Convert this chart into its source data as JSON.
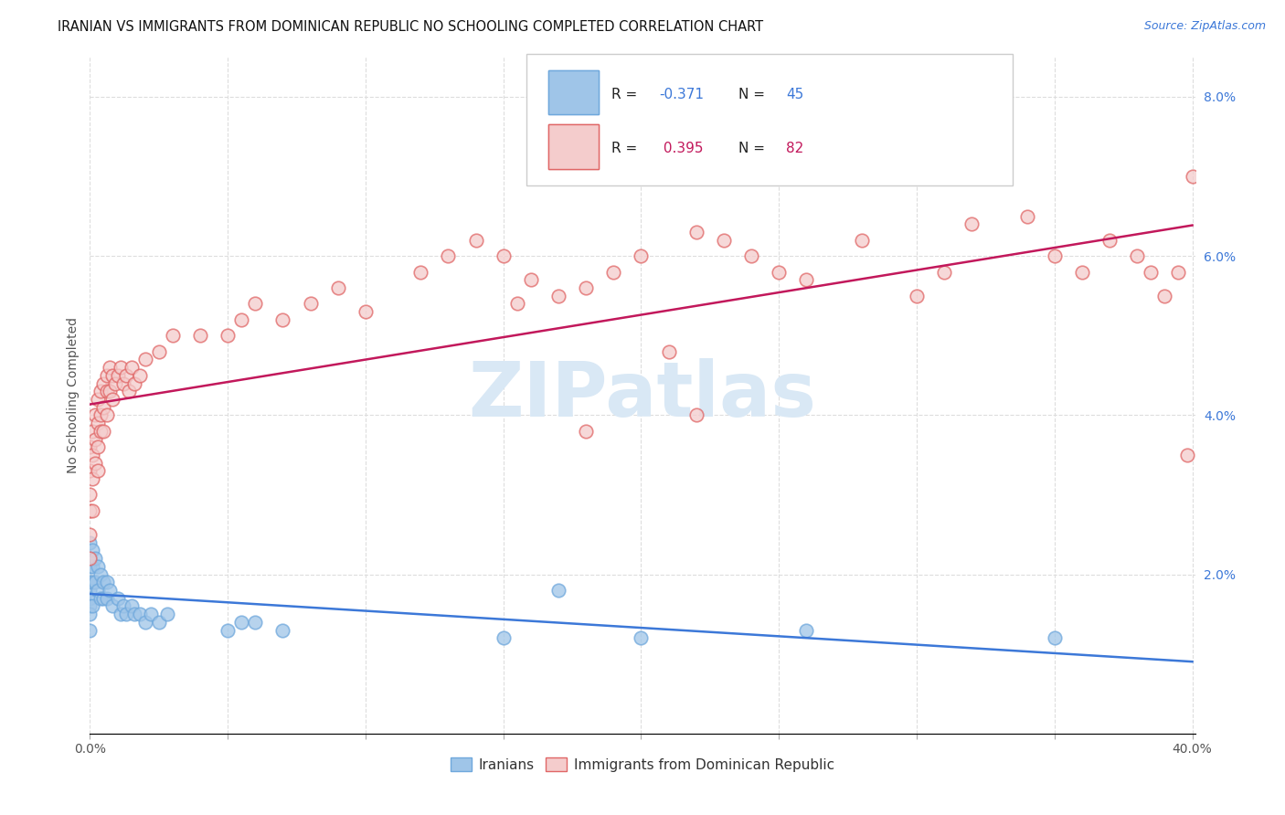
{
  "title": "IRANIAN VS IMMIGRANTS FROM DOMINICAN REPUBLIC NO SCHOOLING COMPLETED CORRELATION CHART",
  "source": "Source: ZipAtlas.com",
  "ylabel": "No Schooling Completed",
  "xlim": [
    0.0,
    0.4
  ],
  "ylim": [
    0.0,
    0.085
  ],
  "blue_scatter_color": "#9fc5e8",
  "blue_edge_color": "#6fa8dc",
  "pink_scatter_color": "#f4cccc",
  "pink_edge_color": "#e06666",
  "blue_line_color": "#3c78d8",
  "pink_line_color": "#c2185b",
  "watermark_color": "#d9e8f5",
  "right_tick_color": "#3c78d8",
  "title_color": "#000000",
  "source_color": "#3c78d8",
  "legend_r1": "R = -0.371",
  "legend_n1": "N = 45",
  "legend_r2": "R =  0.395",
  "legend_n2": "N = 82",
  "iran_r": -0.371,
  "dom_r": 0.395,
  "iran_n": 45,
  "dom_n": 82,
  "iranians_x": [
    0.0,
    0.0,
    0.0,
    0.0,
    0.0,
    0.0,
    0.0,
    0.0,
    0.0,
    0.001,
    0.001,
    0.001,
    0.001,
    0.002,
    0.002,
    0.003,
    0.003,
    0.004,
    0.004,
    0.005,
    0.005,
    0.006,
    0.006,
    0.007,
    0.008,
    0.01,
    0.011,
    0.012,
    0.013,
    0.015,
    0.016,
    0.018,
    0.02,
    0.022,
    0.025,
    0.028,
    0.05,
    0.055,
    0.06,
    0.07,
    0.15,
    0.17,
    0.2,
    0.26,
    0.35
  ],
  "iranians_y": [
    0.024,
    0.022,
    0.021,
    0.019,
    0.018,
    0.017,
    0.016,
    0.015,
    0.013,
    0.023,
    0.021,
    0.019,
    0.016,
    0.022,
    0.019,
    0.021,
    0.018,
    0.02,
    0.017,
    0.019,
    0.017,
    0.019,
    0.017,
    0.018,
    0.016,
    0.017,
    0.015,
    0.016,
    0.015,
    0.016,
    0.015,
    0.015,
    0.014,
    0.015,
    0.014,
    0.015,
    0.013,
    0.014,
    0.014,
    0.013,
    0.012,
    0.018,
    0.012,
    0.013,
    0.012
  ],
  "dominican_x": [
    0.0,
    0.0,
    0.0,
    0.0,
    0.0,
    0.0,
    0.001,
    0.001,
    0.001,
    0.001,
    0.002,
    0.002,
    0.002,
    0.003,
    0.003,
    0.003,
    0.003,
    0.004,
    0.004,
    0.004,
    0.005,
    0.005,
    0.005,
    0.006,
    0.006,
    0.006,
    0.007,
    0.007,
    0.008,
    0.008,
    0.009,
    0.01,
    0.011,
    0.012,
    0.013,
    0.014,
    0.015,
    0.016,
    0.018,
    0.02,
    0.025,
    0.03,
    0.04,
    0.05,
    0.055,
    0.06,
    0.07,
    0.08,
    0.09,
    0.1,
    0.12,
    0.13,
    0.14,
    0.15,
    0.155,
    0.16,
    0.17,
    0.18,
    0.19,
    0.2,
    0.21,
    0.22,
    0.23,
    0.24,
    0.25,
    0.26,
    0.28,
    0.3,
    0.31,
    0.32,
    0.34,
    0.35,
    0.36,
    0.37,
    0.38,
    0.385,
    0.39,
    0.395,
    0.398,
    0.4,
    0.18,
    0.22
  ],
  "dominican_y": [
    0.036,
    0.033,
    0.03,
    0.028,
    0.025,
    0.022,
    0.038,
    0.035,
    0.032,
    0.028,
    0.04,
    0.037,
    0.034,
    0.042,
    0.039,
    0.036,
    0.033,
    0.043,
    0.04,
    0.038,
    0.044,
    0.041,
    0.038,
    0.045,
    0.043,
    0.04,
    0.046,
    0.043,
    0.045,
    0.042,
    0.044,
    0.045,
    0.046,
    0.044,
    0.045,
    0.043,
    0.046,
    0.044,
    0.045,
    0.047,
    0.048,
    0.05,
    0.05,
    0.05,
    0.052,
    0.054,
    0.052,
    0.054,
    0.056,
    0.053,
    0.058,
    0.06,
    0.062,
    0.06,
    0.054,
    0.057,
    0.055,
    0.056,
    0.058,
    0.06,
    0.048,
    0.063,
    0.062,
    0.06,
    0.058,
    0.057,
    0.062,
    0.055,
    0.058,
    0.064,
    0.065,
    0.06,
    0.058,
    0.062,
    0.06,
    0.058,
    0.055,
    0.058,
    0.035,
    0.07,
    0.038,
    0.04
  ]
}
